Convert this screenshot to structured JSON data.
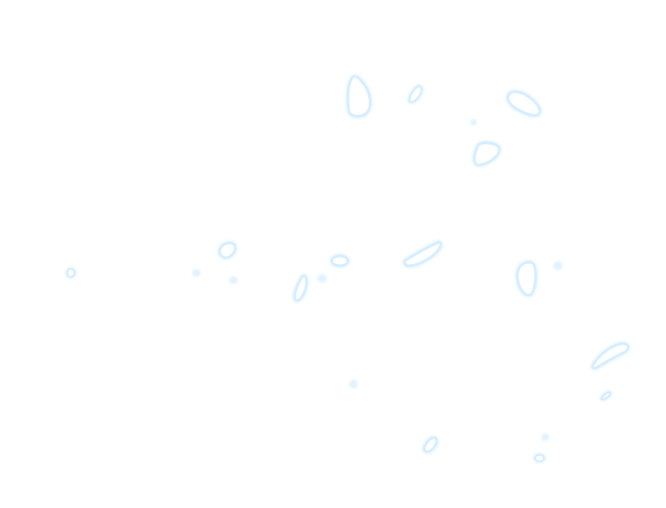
{
  "scene": {
    "background_color": "#ffffff",
    "outline_color": "#d6eeff",
    "glow_color": "#c4e6ff",
    "fill_color": "#ffffff"
  }
}
